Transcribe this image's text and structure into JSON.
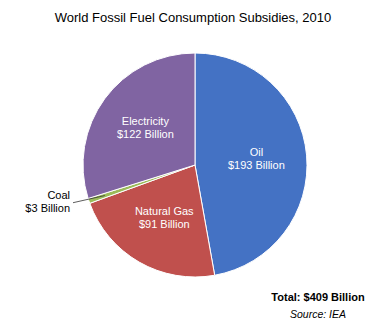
{
  "chart_data": {
    "type": "pie",
    "title": "World Fossil Fuel Consumption Subsidies, 2010",
    "values": [
      193,
      91,
      3,
      122
    ],
    "value_labels": [
      "Oil\n$193 Billion",
      "Natural Gas\n$91 Billion",
      "Coal\n$3 Billion",
      "Electricity\n$122 Billion"
    ],
    "colors": [
      "#4472C4",
      "#C0504D",
      "#9BBB59",
      "#8064A2"
    ],
    "annotations": [
      "Total: $409 Billion",
      "Source: IEA"
    ]
  }
}
